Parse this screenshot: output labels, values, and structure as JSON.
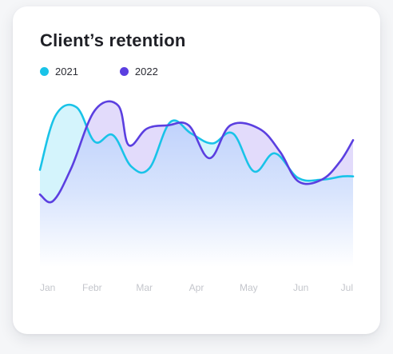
{
  "card": {
    "title": "Client’s retention"
  },
  "chart_data": {
    "type": "area",
    "title": "Client’s retention",
    "categories": [
      "Jan",
      "Febr",
      "Mar",
      "Apr",
      "May",
      "Jun",
      "Jul"
    ],
    "legend_position": "top-left",
    "grid": false,
    "ylim": [
      0,
      100
    ],
    "series": [
      {
        "name": "2021",
        "color": "#19c3e8",
        "x": [
          0,
          0.3,
          0.7,
          1.05,
          1.4,
          1.75,
          2.1,
          2.5,
          2.9,
          3.3,
          3.7,
          4.1,
          4.5,
          4.95,
          5.4,
          5.8,
          6.0
        ],
        "values": [
          59,
          92,
          97,
          76,
          80,
          61,
          60,
          88,
          81,
          75,
          81,
          58,
          69,
          54,
          53,
          55,
          55
        ]
      },
      {
        "name": "2022",
        "color": "#5b3fe0",
        "x": [
          0,
          0.25,
          0.6,
          1.05,
          1.5,
          1.7,
          2.05,
          2.45,
          2.85,
          3.25,
          3.65,
          4.2,
          4.6,
          4.95,
          5.4,
          5.75,
          6.0
        ],
        "values": [
          44,
          40,
          60,
          95,
          98,
          74,
          84,
          86,
          86,
          66,
          86,
          84,
          70,
          52,
          53,
          64,
          77
        ]
      }
    ]
  }
}
